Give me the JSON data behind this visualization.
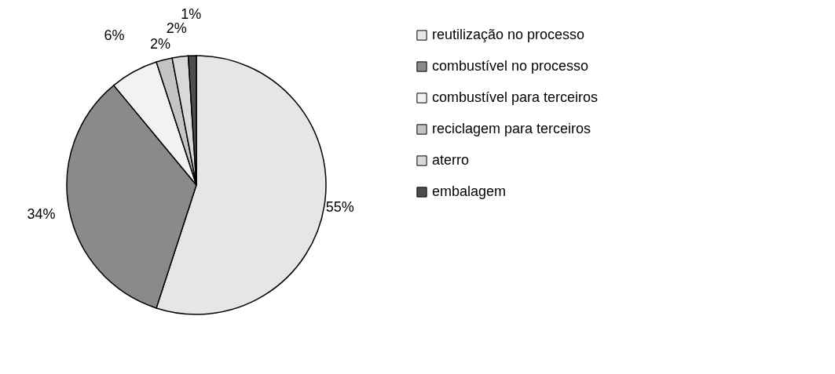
{
  "chart_data": {
    "type": "pie",
    "categories": [
      "reutilização no processo",
      "combustível no processo",
      "combustível para terceiros",
      "reciclagem para terceiros",
      "aterro",
      "embalagem"
    ],
    "values": [
      55,
      34,
      6,
      2,
      2,
      1
    ],
    "colors": [
      "#e6e6e6",
      "#8a8a8a",
      "#f2f2f2",
      "#c4c4c4",
      "#d9d9d9",
      "#4d4d4d"
    ],
    "value_labels": [
      "55%",
      "34%",
      "6%",
      "2%",
      "2%",
      "1%"
    ],
    "legend": "right"
  }
}
